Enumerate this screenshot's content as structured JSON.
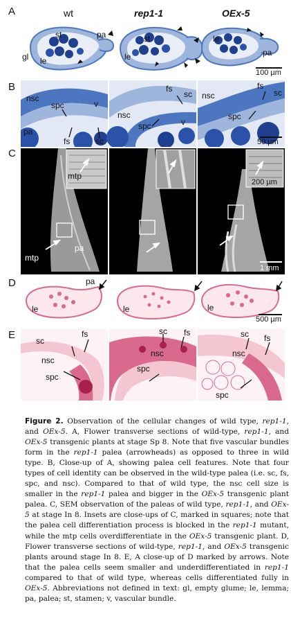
{
  "figure": {
    "panel_labels": [
      "A",
      "B",
      "C",
      "D",
      "E"
    ],
    "columns": [
      "wt",
      "rep1-1",
      "OEx-5"
    ],
    "panel_a": {
      "labels": {
        "st1": "st",
        "pa1": "pa",
        "gl": "gl",
        "le1": "le",
        "st2": "st",
        "le2": "le",
        "le3": "le",
        "pa3": "pa"
      },
      "scale": "100 µm"
    },
    "panel_b": {
      "labels": {
        "nsc1": "nsc",
        "spc1": "spc",
        "v1": "v",
        "pa": "pa",
        "fs1": "fs",
        "sc1": "sc",
        "fs2": "fs",
        "sc2": "sc",
        "nsc2": "nsc",
        "spc2": "spc",
        "v2": "v",
        "fs3": "fs",
        "sc3": "sc",
        "nsc3": "nsc",
        "spc3": "spc"
      },
      "scale": "50 µm"
    },
    "panel_c": {
      "labels": {
        "mtp_inset": "mtp",
        "mtp": "mtp",
        "pa": "pa"
      },
      "scale_inset": "200 µm",
      "scale": "1 mm"
    },
    "panel_d": {
      "labels": {
        "pa": "pa",
        "le1": "le",
        "le2": "le",
        "le3": "le"
      },
      "scale": "500 µm"
    },
    "panel_e": {
      "labels": {
        "sc1": "sc",
        "fs1": "fs",
        "nsc1": "nsc",
        "spc1": "spc",
        "sc2": "sc",
        "fs2": "fs",
        "nsc2": "nsc",
        "spc2": "spc",
        "sc3": "sc",
        "fs3": "fs",
        "nsc3": "nsc",
        "spc3": "spc"
      }
    }
  },
  "caption": {
    "title": "Figure 2.",
    "text": [
      {
        "t": " Observation of the cellular changes of wild type, "
      },
      {
        "t": "rep1-1",
        "i": true
      },
      {
        "t": ", and "
      },
      {
        "t": "OEx-5",
        "i": true
      },
      {
        "t": ". A, Flower transverse sections of wild-type, "
      },
      {
        "t": "rep1-1",
        "i": true
      },
      {
        "t": ", and "
      },
      {
        "t": "OEx-5",
        "i": true
      },
      {
        "t": " transgenic plants at stage Sp 8. Note that five vascular bundles form in the "
      },
      {
        "t": "rep1-1",
        "i": true
      },
      {
        "t": " palea (arrowheads) as opposed to three in wild type. B, Close-up of A, showing palea cell features. Note that four types of cell identity can be observed in the wild-type palea (i.e. sc, fs, spc, and nsc). Compared to that of wild type, the nsc cell size is smaller in the "
      },
      {
        "t": "rep1-1",
        "i": true
      },
      {
        "t": " palea and bigger in the "
      },
      {
        "t": "OEx-5",
        "i": true
      },
      {
        "t": " transgenic plant palea. C, SEM observation of the paleas of wild type, "
      },
      {
        "t": "rep1-1",
        "i": true
      },
      {
        "t": ", and "
      },
      {
        "t": "OEx-5",
        "i": true
      },
      {
        "t": " at stage In 8. Insets are close-ups of C, marked in squares; note that the palea cell differentiation process is blocked in the "
      },
      {
        "t": "rep1-1",
        "i": true
      },
      {
        "t": " mutant, while the mtp cells overdifferentiate in the "
      },
      {
        "t": "OEx-5",
        "i": true
      },
      {
        "t": " transgenic plant. D, Flower transverse sections of wild-type, "
      },
      {
        "t": "rep1-1",
        "i": true
      },
      {
        "t": ", and "
      },
      {
        "t": "OEx-5",
        "i": true
      },
      {
        "t": " transgenic plants around stage In 8. E, A close-up of D marked by arrows. Note that the palea cells seem smaller and underdifferentiated in "
      },
      {
        "t": "rep1-1",
        "i": true
      },
      {
        "t": " compared to that of wild type, whereas cells differentiated fully in "
      },
      {
        "t": "OEx-5",
        "i": true
      },
      {
        "t": ". Abbreviations not defined in text: gl, empty glume; le, lemma; pa, palea; st, stamen; v, vascular bundle."
      }
    ]
  },
  "colors": {
    "toluidine_bg": "#e9eef6",
    "toluidine_light": "#9fb6dc",
    "toluidine_mid": "#4d76c0",
    "toluidine_dark": "#1f3f8f",
    "sem_bg": "#000000",
    "eosin_light": "#f4c6d2",
    "eosin_mid": "#d96a8e",
    "eosin_dark": "#a8204e"
  }
}
